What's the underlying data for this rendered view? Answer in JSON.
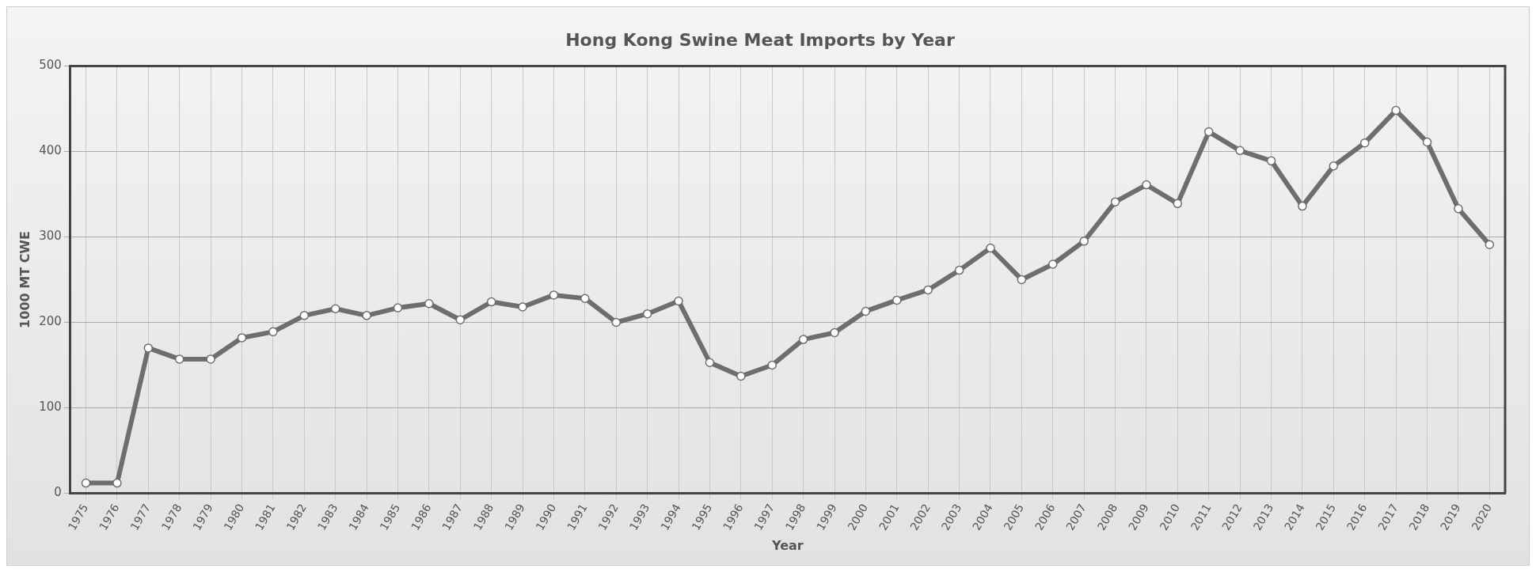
{
  "chart_data": {
    "type": "line",
    "title": "Hong Kong Swine Meat Imports by Year",
    "xlabel": "Year",
    "ylabel": "1000 MT CWE",
    "categories": [
      "1975",
      "1976",
      "1977",
      "1978",
      "1979",
      "1980",
      "1981",
      "1982",
      "1983",
      "1984",
      "1985",
      "1986",
      "1987",
      "1988",
      "1989",
      "1990",
      "1991",
      "1992",
      "1993",
      "1994",
      "1995",
      "1996",
      "1997",
      "1998",
      "1999",
      "2000",
      "2001",
      "2002",
      "2003",
      "2004",
      "2005",
      "2006",
      "2007",
      "2008",
      "2009",
      "2010",
      "2011",
      "2012",
      "2013",
      "2014",
      "2015",
      "2016",
      "2017",
      "2018",
      "2019",
      "2020"
    ],
    "series": [
      {
        "color": "#6e6e6e",
        "values": [
          12,
          12,
          170,
          157,
          157,
          182,
          189,
          208,
          216,
          208,
          217,
          222,
          203,
          224,
          218,
          232,
          228,
          200,
          210,
          225,
          153,
          137,
          150,
          180,
          188,
          213,
          226,
          238,
          261,
          287,
          250,
          268,
          295,
          341,
          361,
          339,
          423,
          401,
          389,
          336,
          383,
          410,
          448,
          411,
          333,
          291
        ]
      }
    ],
    "ylim": [
      0,
      500
    ],
    "yticks": [
      0,
      100,
      200,
      300,
      400,
      500
    ],
    "grid": true,
    "legend": false,
    "marker": "circle",
    "line_style": "solid"
  }
}
